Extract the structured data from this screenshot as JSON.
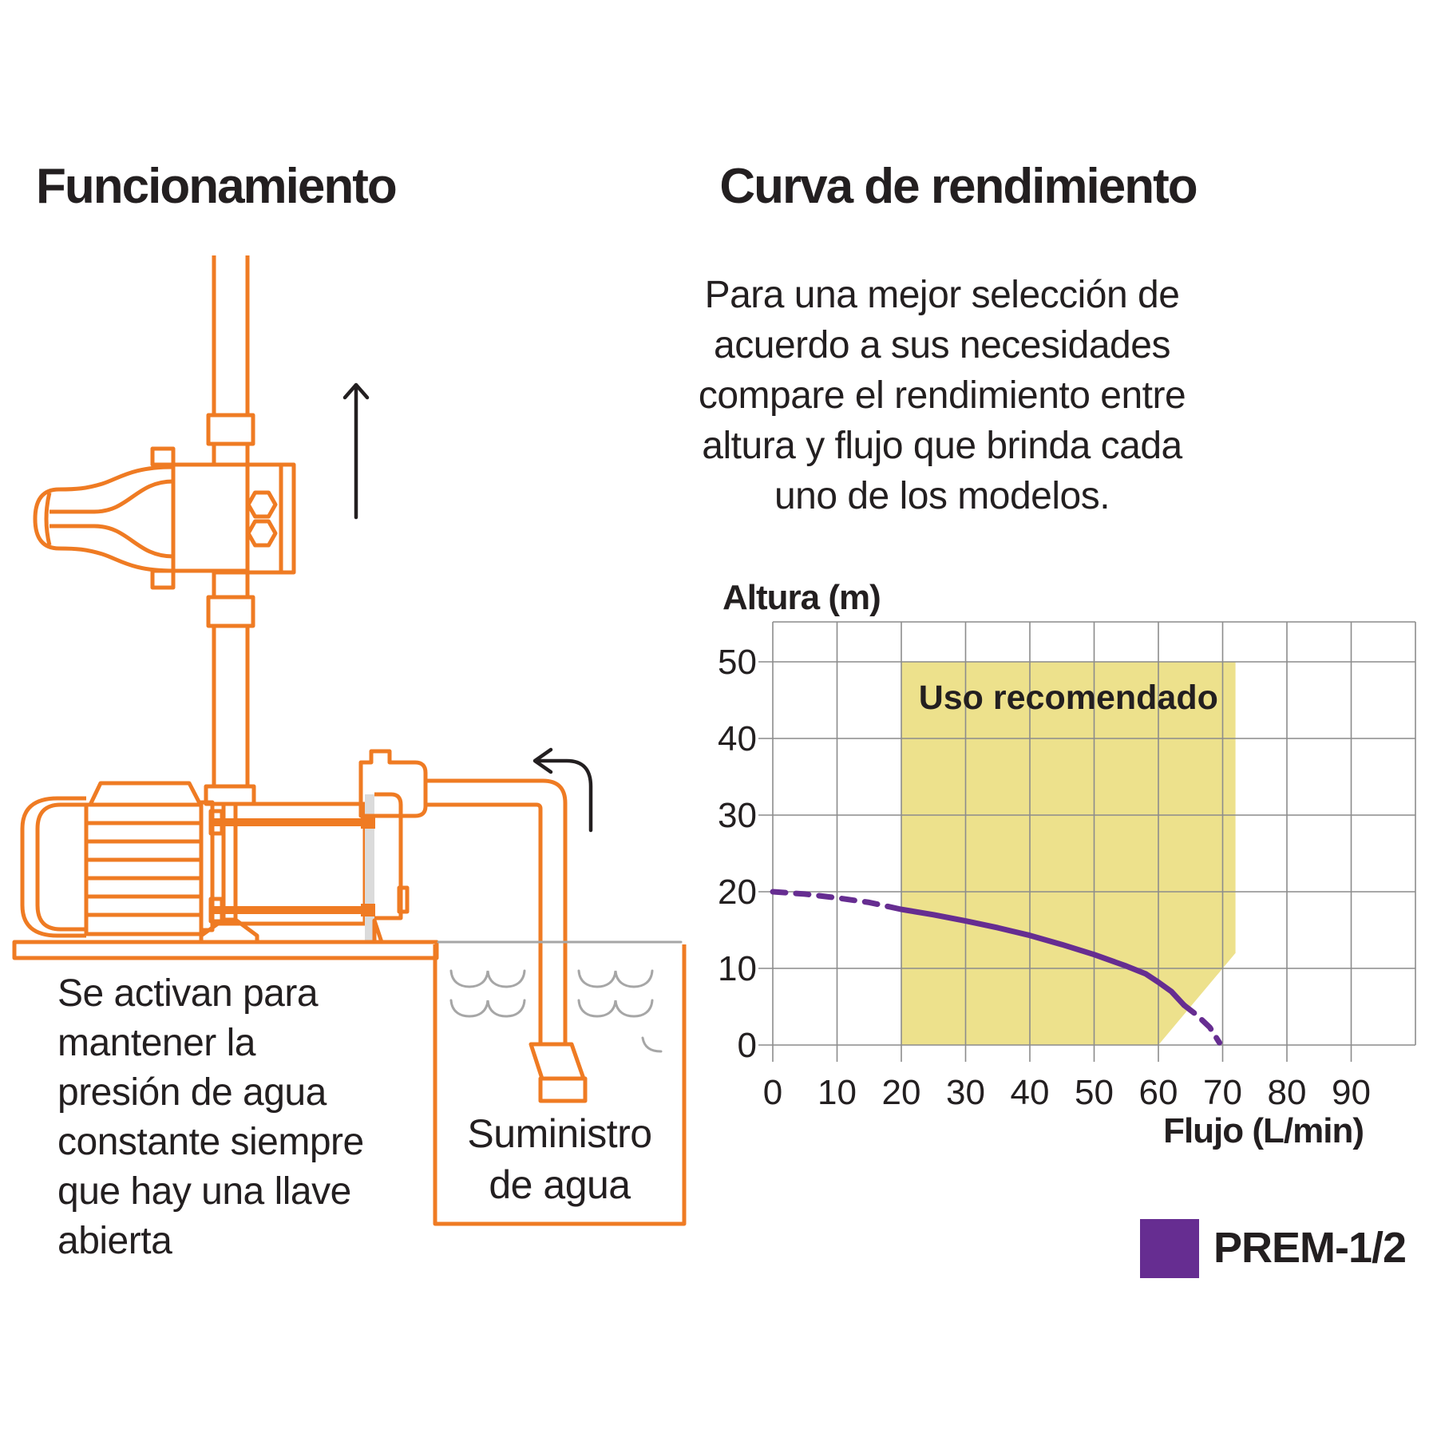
{
  "colors": {
    "orange": "#EF7B23",
    "ink": "#231F20",
    "purple": "#662D91",
    "yellow": "#EDE18C",
    "grid": "#8C8C8C",
    "water": "#A6A6A6",
    "metal_gray": "#DBDBDB"
  },
  "left_panel": {
    "title": "Funcionamiento",
    "caption_lines": [
      "Se activan para",
      "mantener la",
      "presión de agua",
      "constante siempre",
      "que hay una llave",
      "abierta"
    ],
    "tank_label_lines": [
      "Suministro",
      "de agua"
    ]
  },
  "right_panel": {
    "title": "Curva de rendimiento",
    "intro_lines": [
      "Para una mejor selección de",
      "acuerdo a sus necesidades",
      "compare el rendimiento entre",
      "altura y flujo que brinda cada",
      "uno de los modelos."
    ]
  },
  "chart_data": {
    "type": "line",
    "title": "Curva de rendimiento",
    "xlabel": "Flujo (L/min)",
    "ylabel": "Altura (m)",
    "xlim": [
      0,
      100
    ],
    "ylim": [
      0,
      55
    ],
    "x_ticks": [
      0,
      10,
      20,
      30,
      40,
      50,
      60,
      70,
      80,
      90
    ],
    "y_ticks": [
      0,
      10,
      20,
      30,
      40,
      50
    ],
    "grid": true,
    "recommended_region": {
      "label": "Uso recomendado",
      "color": "#EDE18C",
      "polygon": [
        [
          20,
          0
        ],
        [
          20,
          50
        ],
        [
          72,
          50
        ],
        [
          72,
          12
        ],
        [
          60,
          0
        ]
      ]
    },
    "series": [
      {
        "name": "PREM-1/2",
        "color": "#662D91",
        "segments": [
          {
            "style": "dashed",
            "points": [
              [
                0,
                20
              ],
              [
                5,
                19.7
              ],
              [
                10,
                19.2
              ],
              [
                15,
                18.6
              ],
              [
                20,
                17.7
              ]
            ]
          },
          {
            "style": "solid",
            "points": [
              [
                20,
                17.7
              ],
              [
                25,
                17.0
              ],
              [
                30,
                16.2
              ],
              [
                35,
                15.3
              ],
              [
                40,
                14.3
              ],
              [
                45,
                13.1
              ],
              [
                50,
                11.8
              ],
              [
                55,
                10.3
              ],
              [
                58,
                9.3
              ],
              [
                60,
                8.2
              ],
              [
                62,
                7.0
              ],
              [
                64,
                5.2
              ]
            ]
          },
          {
            "style": "dashed",
            "points": [
              [
                64,
                5.2
              ],
              [
                66,
                3.9
              ],
              [
                68,
                2.3
              ],
              [
                69.5,
                0.3
              ]
            ]
          }
        ]
      }
    ],
    "legend": {
      "position": "bottom-right",
      "label": "PREM-1/2",
      "swatch_color": "#662D91"
    }
  }
}
